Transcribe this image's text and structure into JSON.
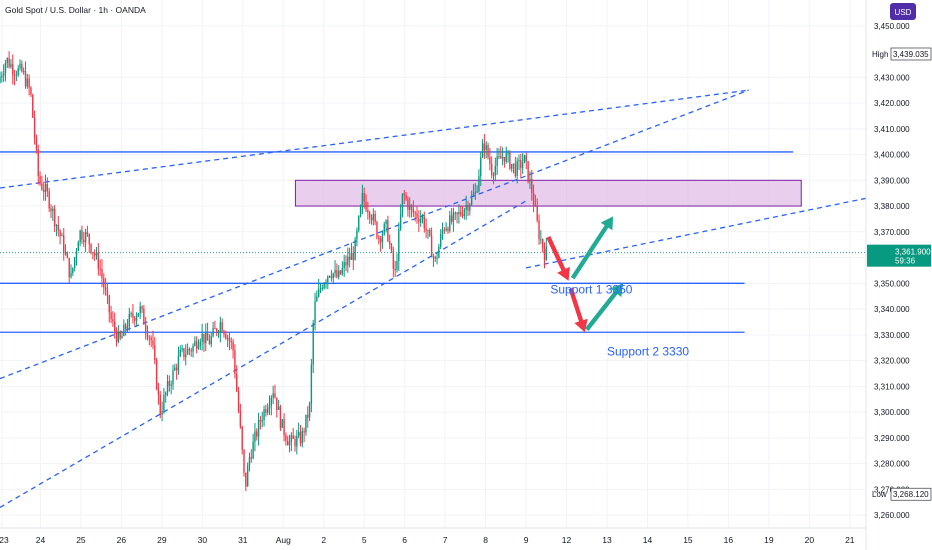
{
  "chart_data": {
    "type": "candlestick",
    "title": "Gold Spot / U.S. Dollar · 1h · OANDA",
    "currency": "USD",
    "y_axis": {
      "range": [
        3255,
        3460
      ],
      "ticks": [
        3260,
        3270,
        3280,
        3290,
        3300,
        3310,
        3320,
        3330,
        3340,
        3350,
        3360,
        3370,
        3380,
        3390,
        3400,
        3410,
        3420,
        3430,
        3450
      ],
      "tick_labels": [
        "3,260.000",
        "3,270.000",
        "3,280.000",
        "3,290.000",
        "3,300.000",
        "3,310.000",
        "3,320.000",
        "3,330.000",
        "3,340.000",
        "3,350.000",
        "3,360.000",
        "3,370.000",
        "3,380.000",
        "3,390.000",
        "3,400.000",
        "3,410.000",
        "3,420.000",
        "3,430.000",
        "3,450.000"
      ]
    },
    "x_axis": {
      "range": [
        0,
        21.4
      ],
      "ticks": [
        {
          "t": 0.05,
          "label": "23"
        },
        {
          "t": 1.0,
          "label": "24"
        },
        {
          "t": 2.0,
          "label": "25"
        },
        {
          "t": 3.0,
          "label": "26"
        },
        {
          "t": 4.0,
          "label": "29"
        },
        {
          "t": 5.0,
          "label": "30"
        },
        {
          "t": 6.0,
          "label": "31"
        },
        {
          "t": 7.0,
          "label": "Aug"
        },
        {
          "t": 8.0,
          "label": "2"
        },
        {
          "t": 9.0,
          "label": "5"
        },
        {
          "t": 10.0,
          "label": "6"
        },
        {
          "t": 11.0,
          "label": "7"
        },
        {
          "t": 12.0,
          "label": "8"
        },
        {
          "t": 13.0,
          "label": "9"
        },
        {
          "t": 14.0,
          "label": "12"
        },
        {
          "t": 15.0,
          "label": "13"
        },
        {
          "t": 16.0,
          "label": "14"
        },
        {
          "t": 17.0,
          "label": "15"
        },
        {
          "t": 18.0,
          "label": "16"
        },
        {
          "t": 19.0,
          "label": "19"
        },
        {
          "t": 20.0,
          "label": "20"
        },
        {
          "t": 21.0,
          "label": "21"
        }
      ]
    },
    "price_path": [
      [
        0.0,
        3428
      ],
      [
        0.2,
        3437
      ],
      [
        0.4,
        3433
      ],
      [
        0.6,
        3432
      ],
      [
        0.8,
        3424
      ],
      [
        1.0,
        3390
      ],
      [
        1.2,
        3385
      ],
      [
        1.4,
        3375
      ],
      [
        1.6,
        3365
      ],
      [
        1.8,
        3352
      ],
      [
        2.0,
        3370
      ],
      [
        2.2,
        3368
      ],
      [
        2.5,
        3357
      ],
      [
        2.8,
        3335
      ],
      [
        3.0,
        3327
      ],
      [
        3.2,
        3335
      ],
      [
        3.5,
        3340
      ],
      [
        3.8,
        3327
      ],
      [
        4.0,
        3300
      ],
      [
        4.2,
        3310
      ],
      [
        4.5,
        3322
      ],
      [
        4.8,
        3325
      ],
      [
        5.0,
        3330
      ],
      [
        5.2,
        3327
      ],
      [
        5.5,
        3335
      ],
      [
        5.8,
        3325
      ],
      [
        6.0,
        3290
      ],
      [
        6.1,
        3270
      ],
      [
        6.2,
        3282
      ],
      [
        6.5,
        3298
      ],
      [
        6.8,
        3309
      ],
      [
        7.0,
        3295
      ],
      [
        7.2,
        3288
      ],
      [
        7.5,
        3290
      ],
      [
        7.7,
        3302
      ],
      [
        7.8,
        3340
      ],
      [
        8.0,
        3350
      ],
      [
        8.2,
        3355
      ],
      [
        8.4,
        3352
      ],
      [
        8.6,
        3358
      ],
      [
        8.8,
        3362
      ],
      [
        9.0,
        3383
      ],
      [
        9.2,
        3378
      ],
      [
        9.4,
        3368
      ],
      [
        9.6,
        3372
      ],
      [
        9.8,
        3352
      ],
      [
        10.0,
        3385
      ],
      [
        10.2,
        3378
      ],
      [
        10.5,
        3375
      ],
      [
        10.8,
        3358
      ],
      [
        11.0,
        3372
      ],
      [
        11.3,
        3375
      ],
      [
        11.6,
        3381
      ],
      [
        11.8,
        3385
      ],
      [
        12.0,
        3405
      ],
      [
        12.2,
        3394
      ],
      [
        12.5,
        3400
      ],
      [
        12.8,
        3394
      ],
      [
        13.0,
        3398
      ],
      [
        13.2,
        3385
      ],
      [
        13.35,
        3370
      ],
      [
        13.5,
        3362
      ]
    ],
    "zones": [
      {
        "name": "resistance-box",
        "t": [
          7.3,
          19.8
        ],
        "y": [
          3380,
          3390
        ],
        "color": "#e1bee7"
      }
    ],
    "horizontal_lines": [
      {
        "y": 3401,
        "t": [
          0,
          19.6
        ]
      },
      {
        "y": 3350,
        "t": [
          0,
          18.4
        ]
      },
      {
        "y": 3331,
        "t": [
          0,
          18.4
        ]
      }
    ],
    "dashed_lines": [
      {
        "from": [
          0,
          3387
        ],
        "to": [
          18.5,
          3425
        ]
      },
      {
        "from": [
          0,
          3313
        ],
        "to": [
          18.5,
          3425
        ]
      },
      {
        "from": [
          0,
          3263
        ],
        "to": [
          13.0,
          3382
        ]
      },
      {
        "from": [
          13.0,
          3356
        ],
        "to": [
          21.4,
          3383
        ]
      }
    ],
    "arrows": [
      {
        "from": [
          13.55,
          3368
        ],
        "to": [
          14.05,
          3351
        ],
        "color": "#f23645"
      },
      {
        "from": [
          14.15,
          3352
        ],
        "to": [
          15.15,
          3376
        ],
        "color": "#22ab94"
      },
      {
        "from": [
          14.1,
          3348
        ],
        "to": [
          14.45,
          3331
        ],
        "color": "#f23645"
      },
      {
        "from": [
          14.5,
          3332
        ],
        "to": [
          15.4,
          3350
        ],
        "color": "#22ab94"
      }
    ],
    "annotations": [
      {
        "text": "Support 1 3350",
        "t": 13.6,
        "y": 3346
      },
      {
        "text": "Support 2 3330",
        "t": 15.0,
        "y": 3322
      }
    ],
    "badges": {
      "high": {
        "label": "High",
        "value": "3,439.035",
        "y": 3439.035
      },
      "current": {
        "value": "3,361.900",
        "countdown": "59:36",
        "y": 3361.9
      },
      "low": {
        "label": "Low",
        "value": "3,268.120",
        "y": 3268.12
      }
    },
    "colors": {
      "up": "#089981",
      "down": "#f23645",
      "line": "#2962ff",
      "zone_fill": "#e1bee7",
      "zone_border": "#7b1fa2"
    }
  }
}
